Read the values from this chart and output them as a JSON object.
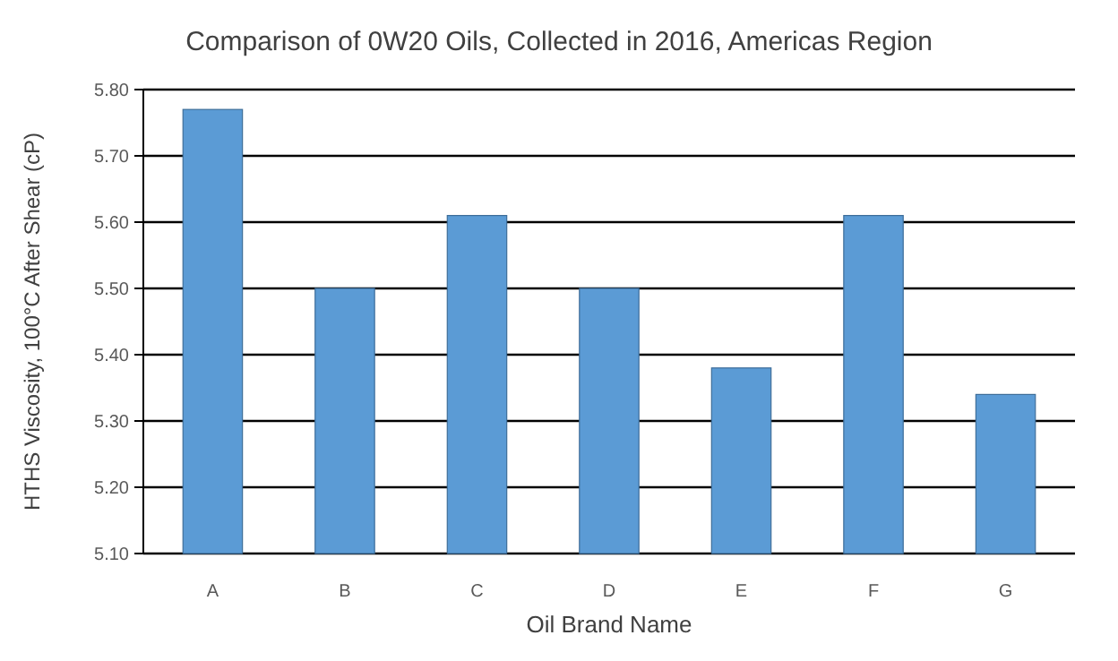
{
  "chart_data": {
    "type": "bar",
    "title": "Comparison of 0W20 Oils, Collected in 2016, Americas Region",
    "xlabel": "Oil Brand Name",
    "ylabel": "HTHS Viscosity, 100°C After Shear (cP)",
    "categories": [
      "A",
      "B",
      "C",
      "D",
      "E",
      "F",
      "G"
    ],
    "values": [
      5.77,
      5.5,
      5.61,
      5.5,
      5.38,
      5.61,
      5.34
    ],
    "color": "#5b9bd5",
    "ylim": [
      5.1,
      5.8
    ],
    "yticks": [
      {
        "value": 5.1,
        "label": "5.10"
      },
      {
        "value": 5.2,
        "label": "5.20"
      },
      {
        "value": 5.3,
        "label": "5.30"
      },
      {
        "value": 5.4,
        "label": "5.40"
      },
      {
        "value": 5.5,
        "label": "5.50"
      },
      {
        "value": 5.6,
        "label": "5.60"
      },
      {
        "value": 5.7,
        "label": "5.70"
      },
      {
        "value": 5.8,
        "label": "5.80"
      }
    ],
    "grid": true
  }
}
